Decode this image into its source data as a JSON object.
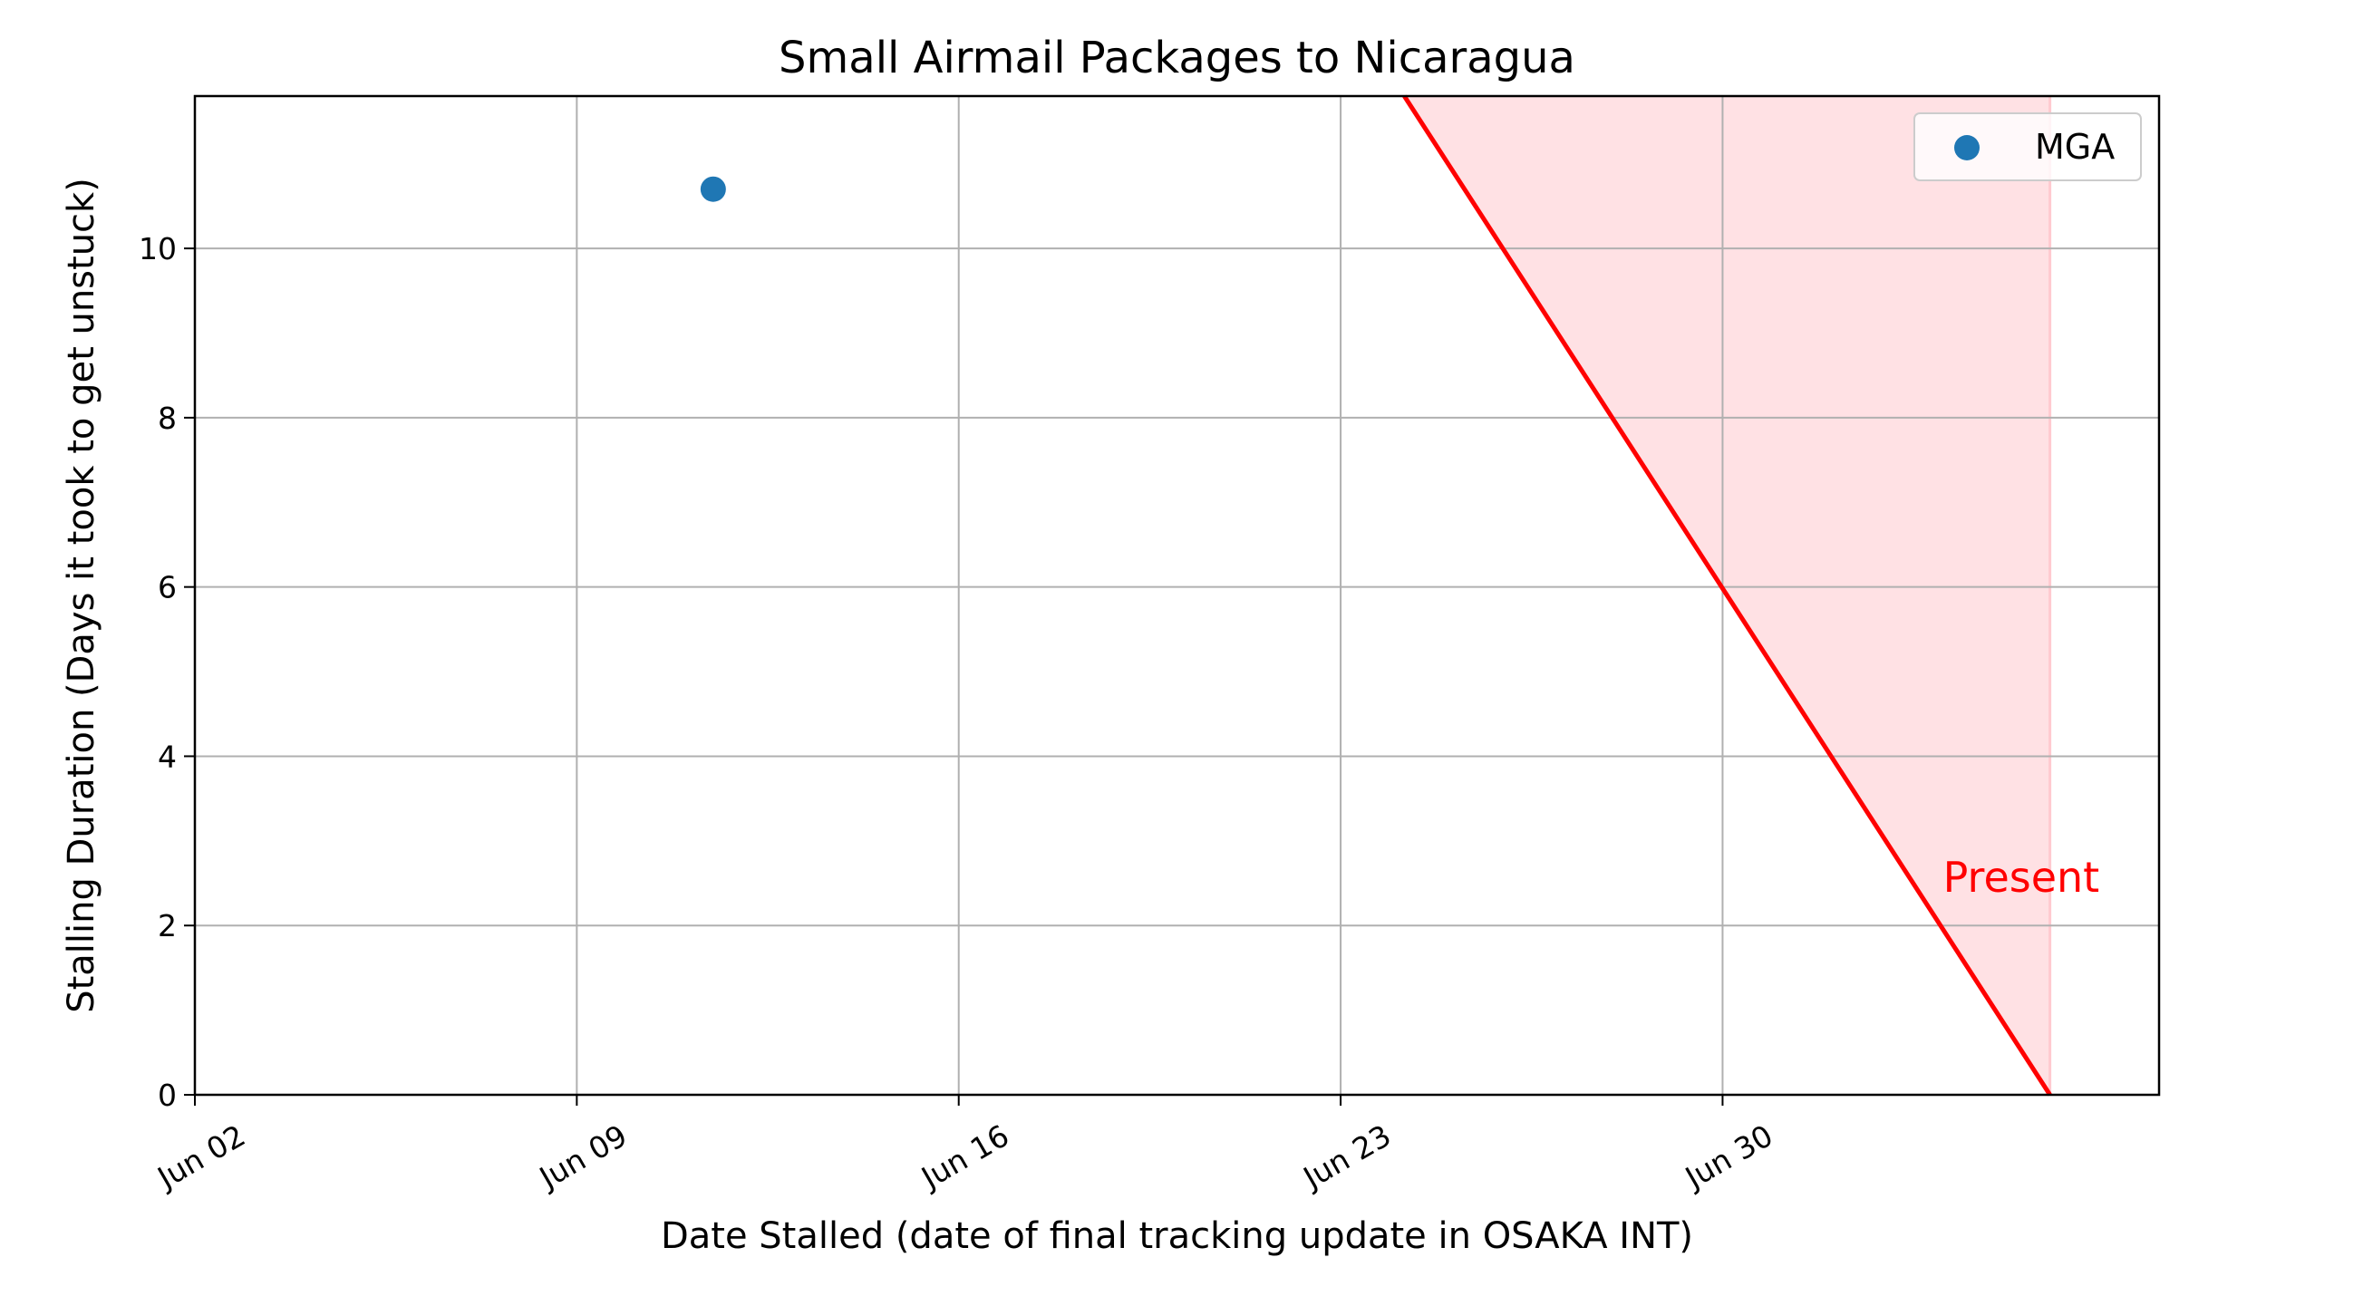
{
  "chart_data": {
    "type": "scatter",
    "title": "Small Airmail Packages to Nicaragua",
    "xlabel": "Date Stalled (date of final tracking update in OSAKA INT)",
    "ylabel": "Stalling Duration (Days it took to get unstuck)",
    "xlim": [
      "2024-06-02",
      "2024-07-08"
    ],
    "ylim": [
      0,
      11.8
    ],
    "x_ticks": [
      {
        "date": "2024-06-02",
        "label": "Jun 02"
      },
      {
        "date": "2024-06-09",
        "label": "Jun 09"
      },
      {
        "date": "2024-06-16",
        "label": "Jun 16"
      },
      {
        "date": "2024-06-23",
        "label": "Jun 23"
      },
      {
        "date": "2024-06-30",
        "label": "Jun 30"
      }
    ],
    "y_ticks": [
      0,
      2,
      4,
      6,
      8,
      10
    ],
    "grid": true,
    "legend_position": "top-right",
    "series": [
      {
        "name": "MGA",
        "color": "#1f77b4",
        "points": [
          {
            "x": "2024-06-11T12:00",
            "y": 10.7
          }
        ]
      }
    ],
    "present_line": {
      "label": "Present",
      "color": "#ff0000",
      "fill_color": "#ffe1e4",
      "start": {
        "x": "2024-06-24T04:00",
        "y": 11.8
      },
      "end": {
        "x": "2024-07-06",
        "y": 0
      }
    }
  }
}
